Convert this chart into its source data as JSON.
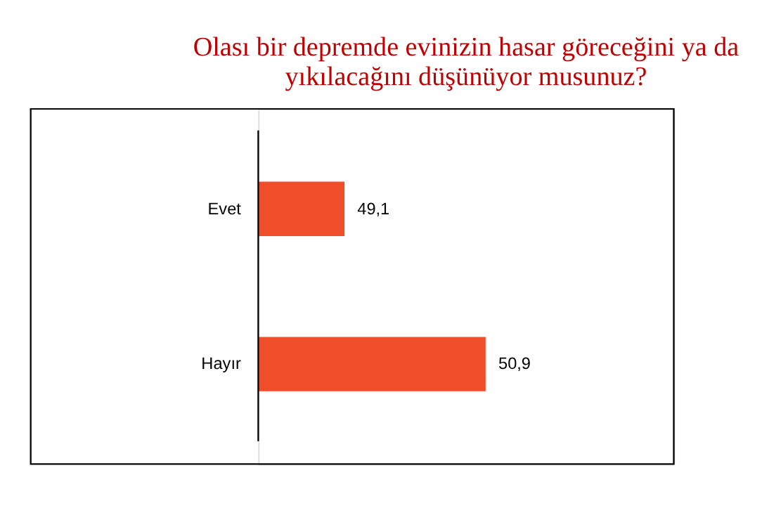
{
  "chart_data": {
    "type": "bar",
    "orientation": "horizontal",
    "title": "Olası bir depremde evinizin hasar göreceğini  ya da\nyıkılacağını düşünüyor musunuz?",
    "categories": [
      "Evet",
      "Hayır"
    ],
    "values": [
      49.1,
      50.9
    ],
    "value_labels": [
      "49,1",
      "50,9"
    ],
    "color": "#f04e2a",
    "xlim": [
      48,
      53.3
    ],
    "tick_labels": "y",
    "grid": false
  }
}
